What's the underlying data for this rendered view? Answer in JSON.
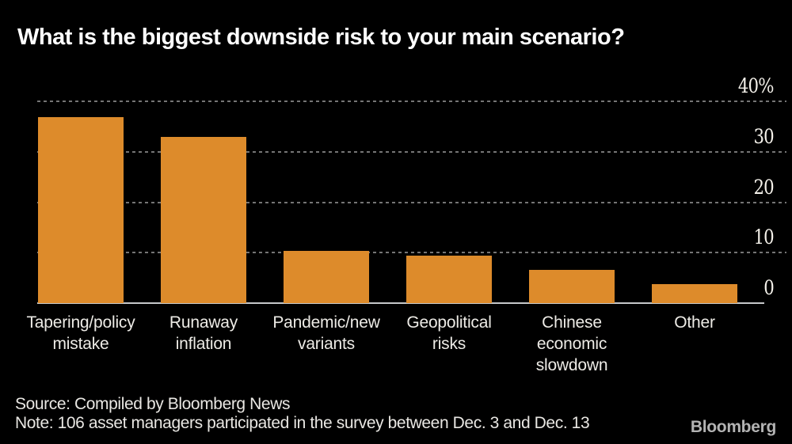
{
  "title": "What is the biggest downside risk to your main scenario?",
  "chart_data": {
    "type": "bar",
    "title": "What is the biggest downside risk to your main scenario?",
    "categories": [
      "Tapering/policy mistake",
      "Runaway inflation",
      "Pandemic/new variants",
      "Geopolitical risks",
      "Chinese economic slowdown",
      "Other"
    ],
    "category_lines": [
      [
        "Tapering/policy",
        "mistake"
      ],
      [
        "Runaway",
        "inflation"
      ],
      [
        "Pandemic/new",
        "variants"
      ],
      [
        "Geopolitical",
        "risks"
      ],
      [
        "Chinese",
        "economic",
        "slowdown"
      ],
      [
        "Other"
      ]
    ],
    "values": [
      36.8,
      33.0,
      10.4,
      9.4,
      6.6,
      3.8
    ],
    "unit": "%",
    "xlabel": "",
    "ylabel": "",
    "ylim": [
      0,
      40
    ],
    "yticks": [
      {
        "value": 40,
        "label": "40%"
      },
      {
        "value": 30,
        "label": "30"
      },
      {
        "value": 20,
        "label": "20"
      },
      {
        "value": 10,
        "label": "10"
      },
      {
        "value": 0,
        "label": "0"
      }
    ],
    "grid": "horizontal-dotted",
    "axis_side": "right",
    "legend": "none",
    "bar_color": "#DD8B2B"
  },
  "colors": {
    "background": "#000000",
    "bar": "#DD8B2B",
    "title_text": "#FFFFFF",
    "tick_text": "#F4F1EA",
    "category_text": "#EDEBE6",
    "gridline": "#757575",
    "baseline": "#C6C8CA",
    "footer_text": "#E9E7E3",
    "logo_text": "#B3B3B3"
  },
  "footer": {
    "source": "Source: Compiled by Bloomberg News",
    "note": "Note: 106 asset managers participated in the survey between Dec. 3 and Dec. 13",
    "logo": "Bloomberg"
  }
}
